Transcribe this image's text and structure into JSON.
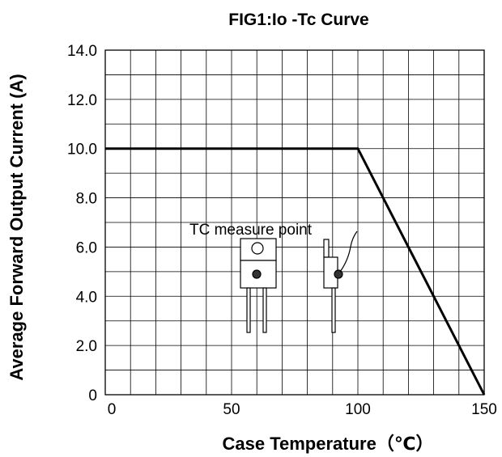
{
  "chart_data": {
    "type": "line",
    "title": "FIG1:Io -Tc Curve",
    "xlabel": "Case Temperature（℃）",
    "ylabel": "Average Forward Output Current (A)",
    "xlim": [
      0,
      150
    ],
    "ylim": [
      0,
      14
    ],
    "x_ticks": [
      "0",
      "50",
      "100",
      "150"
    ],
    "x_tick_values": [
      0,
      50,
      100,
      150
    ],
    "y_ticks": [
      "0",
      "2.0",
      "4.0",
      "6.0",
      "8.0",
      "10.0",
      "12.0",
      "14.0"
    ],
    "y_tick_values": [
      0,
      2,
      4,
      6,
      8,
      10,
      12,
      14
    ],
    "grid": true,
    "x_gridlines": 15,
    "y_gridlines": 14,
    "series": [
      {
        "x": [
          0,
          100,
          150
        ],
        "y": [
          10,
          10,
          0
        ]
      }
    ],
    "annotations": [
      {
        "text": "TC measure point"
      }
    ],
    "colors": {
      "line": "#000000",
      "grid": "#000000",
      "background": "#ffffff"
    }
  }
}
